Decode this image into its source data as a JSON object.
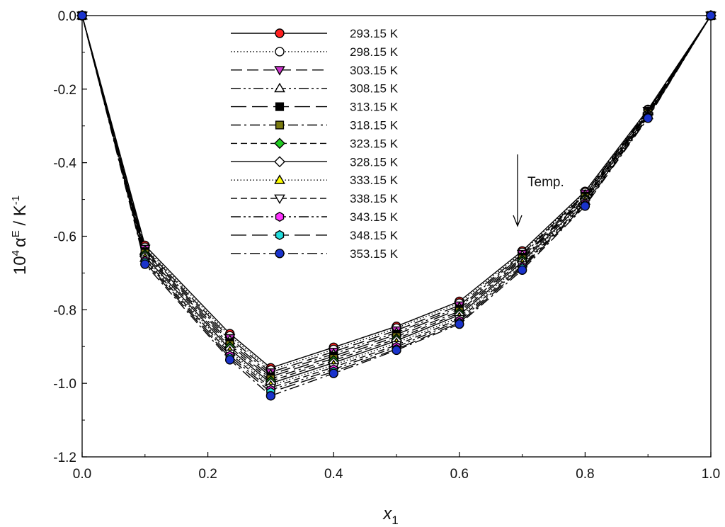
{
  "chart_data": {
    "type": "line",
    "title": "",
    "xlabel": "x",
    "xlabel_sub": "1",
    "ylabel": {
      "prefix": "10",
      "prefix_sup": "4",
      "symbol": "α",
      "symbol_sup": "E",
      "unit": " / K",
      "unit_sup": "-1"
    },
    "xlim": [
      0.0,
      1.0
    ],
    "ylim": [
      -1.2,
      0.0
    ],
    "xticks": [
      0.0,
      0.2,
      0.4,
      0.6,
      0.8,
      1.0
    ],
    "xtick_labels": [
      "0.0",
      "0.2",
      "0.4",
      "0.6",
      "0.8",
      "1.0"
    ],
    "yticks": [
      0.0,
      -0.2,
      -0.4,
      -0.6,
      -0.8,
      -1.0,
      -1.2
    ],
    "ytick_labels": [
      "0.0",
      "-0.2",
      "-0.4",
      "-0.6",
      "-0.8",
      "-1.0",
      "-1.2"
    ],
    "grid": false,
    "legend_position": "top-center",
    "x": [
      0.0,
      0.1,
      0.235,
      0.3,
      0.4,
      0.5,
      0.6,
      0.7,
      0.8,
      0.9,
      1.0
    ],
    "series": [
      {
        "name": "293.15 K",
        "line": "solid",
        "marker": "circle",
        "fill": "#ff2020",
        "values": [
          0.0,
          -0.625,
          -0.865,
          -0.958,
          -0.902,
          -0.845,
          -0.777,
          -0.64,
          -0.478,
          -0.255,
          0.0
        ]
      },
      {
        "name": "298.15 K",
        "line": "dotted",
        "marker": "circle",
        "fill": "#ffffff",
        "values": [
          0.0,
          -0.63,
          -0.871,
          -0.964,
          -0.908,
          -0.85,
          -0.782,
          -0.644,
          -0.481,
          -0.257,
          0.0
        ]
      },
      {
        "name": "303.15 K",
        "line": "longdash",
        "marker": "triangle-down",
        "fill": "#cc33cc",
        "values": [
          0.0,
          -0.634,
          -0.877,
          -0.97,
          -0.914,
          -0.856,
          -0.788,
          -0.648,
          -0.484,
          -0.259,
          0.0
        ]
      },
      {
        "name": "308.15 K",
        "line": "dashdotdot",
        "marker": "triangle-up",
        "fill": "#ffffff",
        "values": [
          0.0,
          -0.638,
          -0.883,
          -0.976,
          -0.92,
          -0.862,
          -0.793,
          -0.652,
          -0.487,
          -0.261,
          0.0
        ]
      },
      {
        "name": "313.15 K",
        "line": "longdash2",
        "marker": "square",
        "fill": "#000000",
        "values": [
          0.0,
          -0.642,
          -0.889,
          -0.982,
          -0.926,
          -0.867,
          -0.798,
          -0.657,
          -0.491,
          -0.263,
          0.0
        ]
      },
      {
        "name": "318.15 K",
        "line": "dashdot",
        "marker": "square",
        "fill": "#7a7a10",
        "values": [
          0.0,
          -0.646,
          -0.895,
          -0.988,
          -0.932,
          -0.873,
          -0.804,
          -0.661,
          -0.494,
          -0.265,
          0.0
        ]
      },
      {
        "name": "323.15 K",
        "line": "dashed",
        "marker": "diamond",
        "fill": "#22cc22",
        "values": [
          0.0,
          -0.65,
          -0.901,
          -0.994,
          -0.938,
          -0.879,
          -0.809,
          -0.665,
          -0.497,
          -0.267,
          0.0
        ]
      },
      {
        "name": "328.15 K",
        "line": "solid",
        "marker": "diamond",
        "fill": "#ffffff",
        "values": [
          0.0,
          -0.655,
          -0.907,
          -1.0,
          -0.944,
          -0.884,
          -0.814,
          -0.67,
          -0.501,
          -0.269,
          0.0
        ]
      },
      {
        "name": "333.15 K",
        "line": "dotted",
        "marker": "triangle-up",
        "fill": "#ffff00",
        "values": [
          0.0,
          -0.659,
          -0.913,
          -1.006,
          -0.95,
          -0.89,
          -0.82,
          -0.674,
          -0.504,
          -0.271,
          0.0
        ]
      },
      {
        "name": "338.15 K",
        "line": "dashed",
        "marker": "triangle-down",
        "fill": "#ffffff",
        "values": [
          0.0,
          -0.663,
          -0.919,
          -1.012,
          -0.956,
          -0.896,
          -0.825,
          -0.679,
          -0.508,
          -0.273,
          0.0
        ]
      },
      {
        "name": "343.15 K",
        "line": "dashdotdot",
        "marker": "hexagon",
        "fill": "#ff33ff",
        "values": [
          0.0,
          -0.667,
          -0.925,
          -1.018,
          -0.962,
          -0.901,
          -0.83,
          -0.683,
          -0.511,
          -0.275,
          0.0
        ]
      },
      {
        "name": "348.15 K",
        "line": "longdash2",
        "marker": "hexagon",
        "fill": "#22dddd",
        "values": [
          0.0,
          -0.671,
          -0.931,
          -1.024,
          -0.968,
          -0.907,
          -0.835,
          -0.687,
          -0.515,
          -0.277,
          0.0
        ]
      },
      {
        "name": "353.15 K",
        "line": "dashdot",
        "marker": "circle",
        "fill": "#1a33cc",
        "values": [
          0.0,
          -0.676,
          -0.936,
          -1.034,
          -0.973,
          -0.91,
          -0.839,
          -0.692,
          -0.518,
          -0.279,
          0.0
        ]
      }
    ],
    "annotation": {
      "text": "Temp.",
      "direction": "down"
    }
  }
}
